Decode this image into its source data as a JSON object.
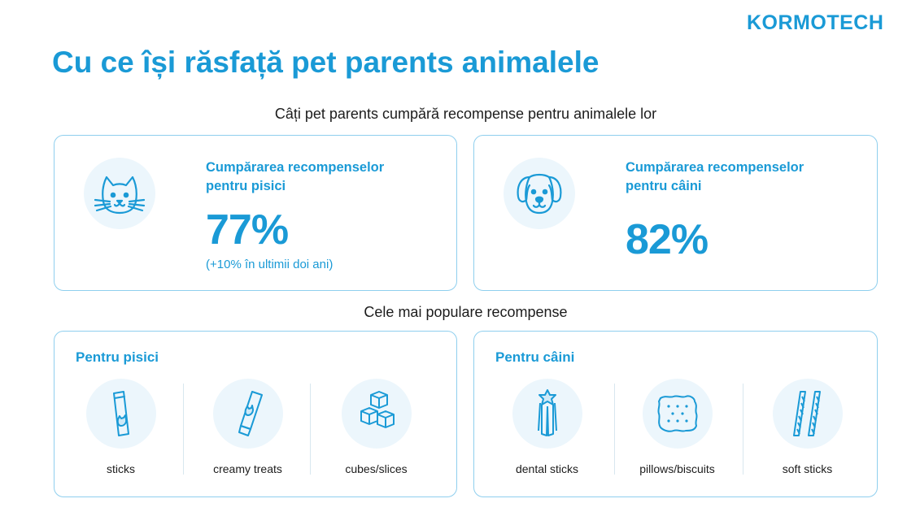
{
  "brand": {
    "logo": "KORMOTECH",
    "accent": "#1a9ad6"
  },
  "title": "Cu ce își răsfață pet parents animalele",
  "section1": {
    "heading": "Câți pet parents cumpără recompense pentru animalele lor",
    "cats": {
      "icon": "cat-face-icon",
      "label_line1": "Cumpărarea recompenselor",
      "label_line2": "pentru pisici",
      "value": "77%",
      "note": "(+10% în ultimii doi ani)"
    },
    "dogs": {
      "icon": "dog-face-icon",
      "label_line1": "Cumpărarea recompenselor",
      "label_line2": "pentru câini",
      "value": "82%"
    }
  },
  "section2": {
    "heading": "Cele mai populare recompense",
    "cats": {
      "heading": "Pentru pisici",
      "items": [
        {
          "label": "sticks",
          "icon": "cat-stick-icon"
        },
        {
          "label": "creamy treats",
          "icon": "cream-tube-icon"
        },
        {
          "label": "cubes/slices",
          "icon": "cubes-icon"
        }
      ]
    },
    "dogs": {
      "heading": "Pentru câini",
      "items": [
        {
          "label": "dental sticks",
          "icon": "dental-stick-icon"
        },
        {
          "label": "pillows/biscuits",
          "icon": "biscuit-icon"
        },
        {
          "label": "soft sticks",
          "icon": "soft-stick-icon"
        }
      ]
    }
  }
}
